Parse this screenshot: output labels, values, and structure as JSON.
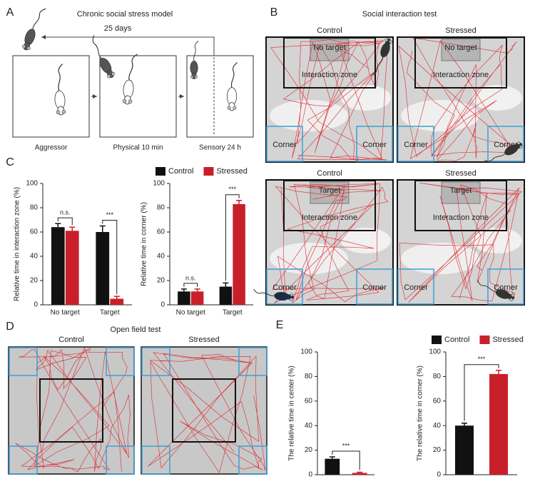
{
  "panel_a": {
    "label": "A",
    "title": "Chronic social stress model",
    "duration": "25 days",
    "steps": [
      "Aggressor",
      "Physical 10 min",
      "Sensory 24 h"
    ]
  },
  "panel_b": {
    "label": "B",
    "title": "Social interaction test",
    "arenas": [
      {
        "column": "Control",
        "target": "No target",
        "zone": "Interaction zone",
        "corners": [
          "Corner",
          "Corner"
        ]
      },
      {
        "column": "Stressed",
        "target": "No target",
        "zone": "Interaction zone",
        "corners": [
          "Corner",
          "Corner"
        ]
      },
      {
        "column": "Control",
        "target": "Target",
        "zone": "Interaction zone",
        "corners": [
          "Corner",
          "Corner"
        ]
      },
      {
        "column": "Stressed",
        "target": "Target",
        "zone": "Interaction zone",
        "corners": [
          "Corner",
          "Corner"
        ]
      }
    ]
  },
  "panel_c": {
    "label": "C"
  },
  "panel_d": {
    "label": "D",
    "title": "Open field test",
    "columns": [
      "Control",
      "Stressed"
    ]
  },
  "panel_e": {
    "label": "E"
  },
  "chart_data": [
    {
      "type": "bar",
      "y_label": "Relative time in interaction zone (%)",
      "categories": [
        "No target",
        "Target"
      ],
      "series": [
        {
          "name": "Control",
          "color": "#111111",
          "values": [
            64,
            60
          ],
          "errors": [
            3,
            5
          ]
        },
        {
          "name": "Stressed",
          "color": "#c8202a",
          "values": [
            61,
            5
          ],
          "errors": [
            3,
            2
          ]
        }
      ],
      "annotations": [
        "n.s.",
        "***"
      ],
      "ylim": [
        0,
        100
      ],
      "yticks": [
        0,
        20,
        40,
        60,
        80,
        100
      ]
    },
    {
      "type": "bar",
      "y_label": "Relative time in corner (%)",
      "categories": [
        "No target",
        "Target"
      ],
      "series": [
        {
          "name": "Control",
          "color": "#111111",
          "values": [
            11,
            15
          ],
          "errors": [
            2,
            3
          ]
        },
        {
          "name": "Stressed",
          "color": "#c8202a",
          "values": [
            11,
            83
          ],
          "errors": [
            2,
            3
          ]
        }
      ],
      "annotations": [
        "n.s.",
        "***"
      ],
      "ylim": [
        0,
        100
      ],
      "yticks": [
        0,
        20,
        40,
        60,
        80,
        100
      ],
      "legend": "top"
    },
    {
      "type": "bar",
      "y_label": "The relative time in center (%)",
      "categories": [
        null
      ],
      "series": [
        {
          "name": "Control",
          "color": "#111111",
          "values": [
            13
          ],
          "errors": [
            1.5
          ]
        },
        {
          "name": "Stressed",
          "color": "#c8202a",
          "values": [
            1.5
          ],
          "errors": [
            0.5
          ]
        }
      ],
      "annotations": [
        "***"
      ],
      "ylim": [
        0,
        100
      ],
      "yticks": [
        0,
        20,
        40,
        60,
        80,
        100
      ]
    },
    {
      "type": "bar",
      "y_label": "The relative time in corner (%)",
      "categories": [
        null
      ],
      "series": [
        {
          "name": "Control",
          "color": "#111111",
          "values": [
            40
          ],
          "errors": [
            2
          ]
        },
        {
          "name": "Stressed",
          "color": "#c8202a",
          "values": [
            82
          ],
          "errors": [
            3
          ]
        }
      ],
      "annotations": [
        "***"
      ],
      "ylim": [
        0,
        100
      ],
      "yticks": [
        0,
        20,
        40,
        60,
        80,
        100
      ],
      "legend": "top"
    }
  ]
}
